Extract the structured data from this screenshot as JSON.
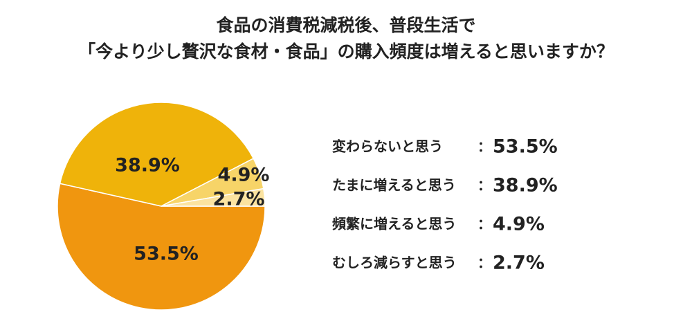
{
  "chart_data": {
    "type": "pie",
    "title": [
      "食品の消費税減税後、普段生活で",
      "「今より少し贅沢な食材・食品」の購入頻度は増えると思いますか？"
    ],
    "categories": [
      "変わらないと思う",
      "たまに増えると思う",
      "頻繁に増えると思う",
      "むしろ減らすと思う"
    ],
    "values": [
      53.5,
      38.9,
      4.9,
      2.7
    ],
    "value_labels": [
      "53.5%",
      "38.9%",
      "4.9%",
      "2.7%"
    ],
    "colors": [
      "#f0960f",
      "#efb30a",
      "#f7d468",
      "#fbe3a0"
    ],
    "separator": "："
  }
}
